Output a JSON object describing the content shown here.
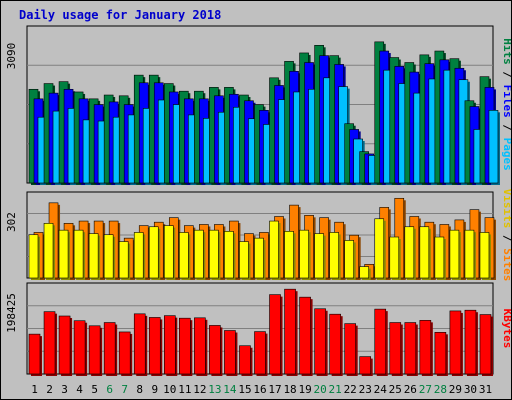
{
  "title": "Daily usage for January 2018",
  "chart_data": [
    {
      "type": "bar",
      "panel": "pages-files-hits",
      "categories": [
        "1",
        "2",
        "3",
        "4",
        "5",
        "6",
        "7",
        "8",
        "9",
        "10",
        "11",
        "12",
        "13",
        "14",
        "15",
        "16",
        "17",
        "18",
        "19",
        "20",
        "21",
        "22",
        "23",
        "24",
        "25",
        "26",
        "27",
        "28",
        "29",
        "30",
        "31"
      ],
      "weekend_days": [
        "6",
        "7",
        "13",
        "14",
        "20",
        "21",
        "27",
        "28"
      ],
      "ymax_label": "3090",
      "ylim": [
        0,
        4000
      ],
      "right_labels": [
        "Pages",
        "Files",
        "Hits"
      ],
      "series": [
        {
          "name": "Hits",
          "color": "#008040",
          "values": [
            2450,
            2600,
            2650,
            2380,
            2200,
            2300,
            2280,
            2820,
            2820,
            2600,
            2400,
            2400,
            2500,
            2500,
            2300,
            2050,
            2750,
            3180,
            3400,
            3600,
            3330,
            1550,
            820,
            3690,
            3280,
            3150,
            3350,
            3450,
            3250,
            2150,
            2780
          ]
        },
        {
          "name": "Files",
          "color": "#0000ff",
          "values": [
            2200,
            2350,
            2450,
            2200,
            2050,
            2120,
            2050,
            2620,
            2620,
            2380,
            2200,
            2200,
            2280,
            2320,
            2150,
            1900,
            2550,
            2920,
            3150,
            3330,
            3100,
            1400,
            760,
            3450,
            3050,
            2900,
            3120,
            3220,
            3000,
            2000,
            2500
          ]
        },
        {
          "name": "Pages",
          "color": "#00c0ff",
          "values": [
            1720,
            1880,
            1950,
            1650,
            1620,
            1720,
            1780,
            1950,
            2170,
            2050,
            1780,
            1690,
            1850,
            1980,
            1680,
            1530,
            2180,
            2380,
            2450,
            2750,
            2520,
            1150,
            720,
            2950,
            2600,
            2350,
            2720,
            2950,
            2700,
            1400,
            1900
          ]
        }
      ]
    },
    {
      "type": "bar",
      "panel": "sites-visits",
      "categories": [
        "1",
        "2",
        "3",
        "4",
        "5",
        "6",
        "7",
        "8",
        "9",
        "10",
        "11",
        "12",
        "13",
        "14",
        "15",
        "16",
        "17",
        "18",
        "19",
        "20",
        "21",
        "22",
        "23",
        "24",
        "25",
        "26",
        "27",
        "28",
        "29",
        "30",
        "31"
      ],
      "ymax_label": "302",
      "ylim": [
        0,
        360
      ],
      "right_labels": [
        "Sites",
        "Visits"
      ],
      "series": [
        {
          "name": "Visits",
          "color": "#ff8000",
          "values": [
            200,
            330,
            240,
            250,
            250,
            250,
            175,
            230,
            245,
            265,
            230,
            235,
            235,
            250,
            195,
            200,
            270,
            320,
            275,
            265,
            245,
            188,
            60,
            310,
            350,
            270,
            245,
            235,
            255,
            300,
            265
          ]
        },
        {
          "name": "Sites",
          "color": "#ffff00",
          "values": [
            190,
            240,
            210,
            210,
            195,
            190,
            160,
            200,
            225,
            230,
            200,
            210,
            210,
            205,
            160,
            175,
            250,
            205,
            210,
            195,
            200,
            165,
            50,
            260,
            180,
            225,
            225,
            180,
            210,
            210,
            200
          ]
        }
      ]
    },
    {
      "type": "bar",
      "panel": "kbytes",
      "categories": [
        "1",
        "2",
        "3",
        "4",
        "5",
        "6",
        "7",
        "8",
        "9",
        "10",
        "11",
        "12",
        "13",
        "14",
        "15",
        "16",
        "17",
        "18",
        "19",
        "20",
        "21",
        "22",
        "23",
        "24",
        "25",
        "26",
        "27",
        "28",
        "29",
        "30",
        "31"
      ],
      "ymax_label": "198425",
      "ylim": [
        0,
        240000
      ],
      "right_labels": [
        "KBytes"
      ],
      "series": [
        {
          "name": "KBytes",
          "color": "#ff0000",
          "values": [
            110000,
            172000,
            160000,
            147000,
            133000,
            142000,
            116000,
            166000,
            156000,
            161000,
            154000,
            155000,
            134000,
            120000,
            78000,
            117000,
            219000,
            234000,
            212000,
            180000,
            165000,
            139000,
            48000,
            179000,
            142000,
            142000,
            148000,
            115000,
            174000,
            176000,
            164000
          ]
        }
      ]
    }
  ]
}
